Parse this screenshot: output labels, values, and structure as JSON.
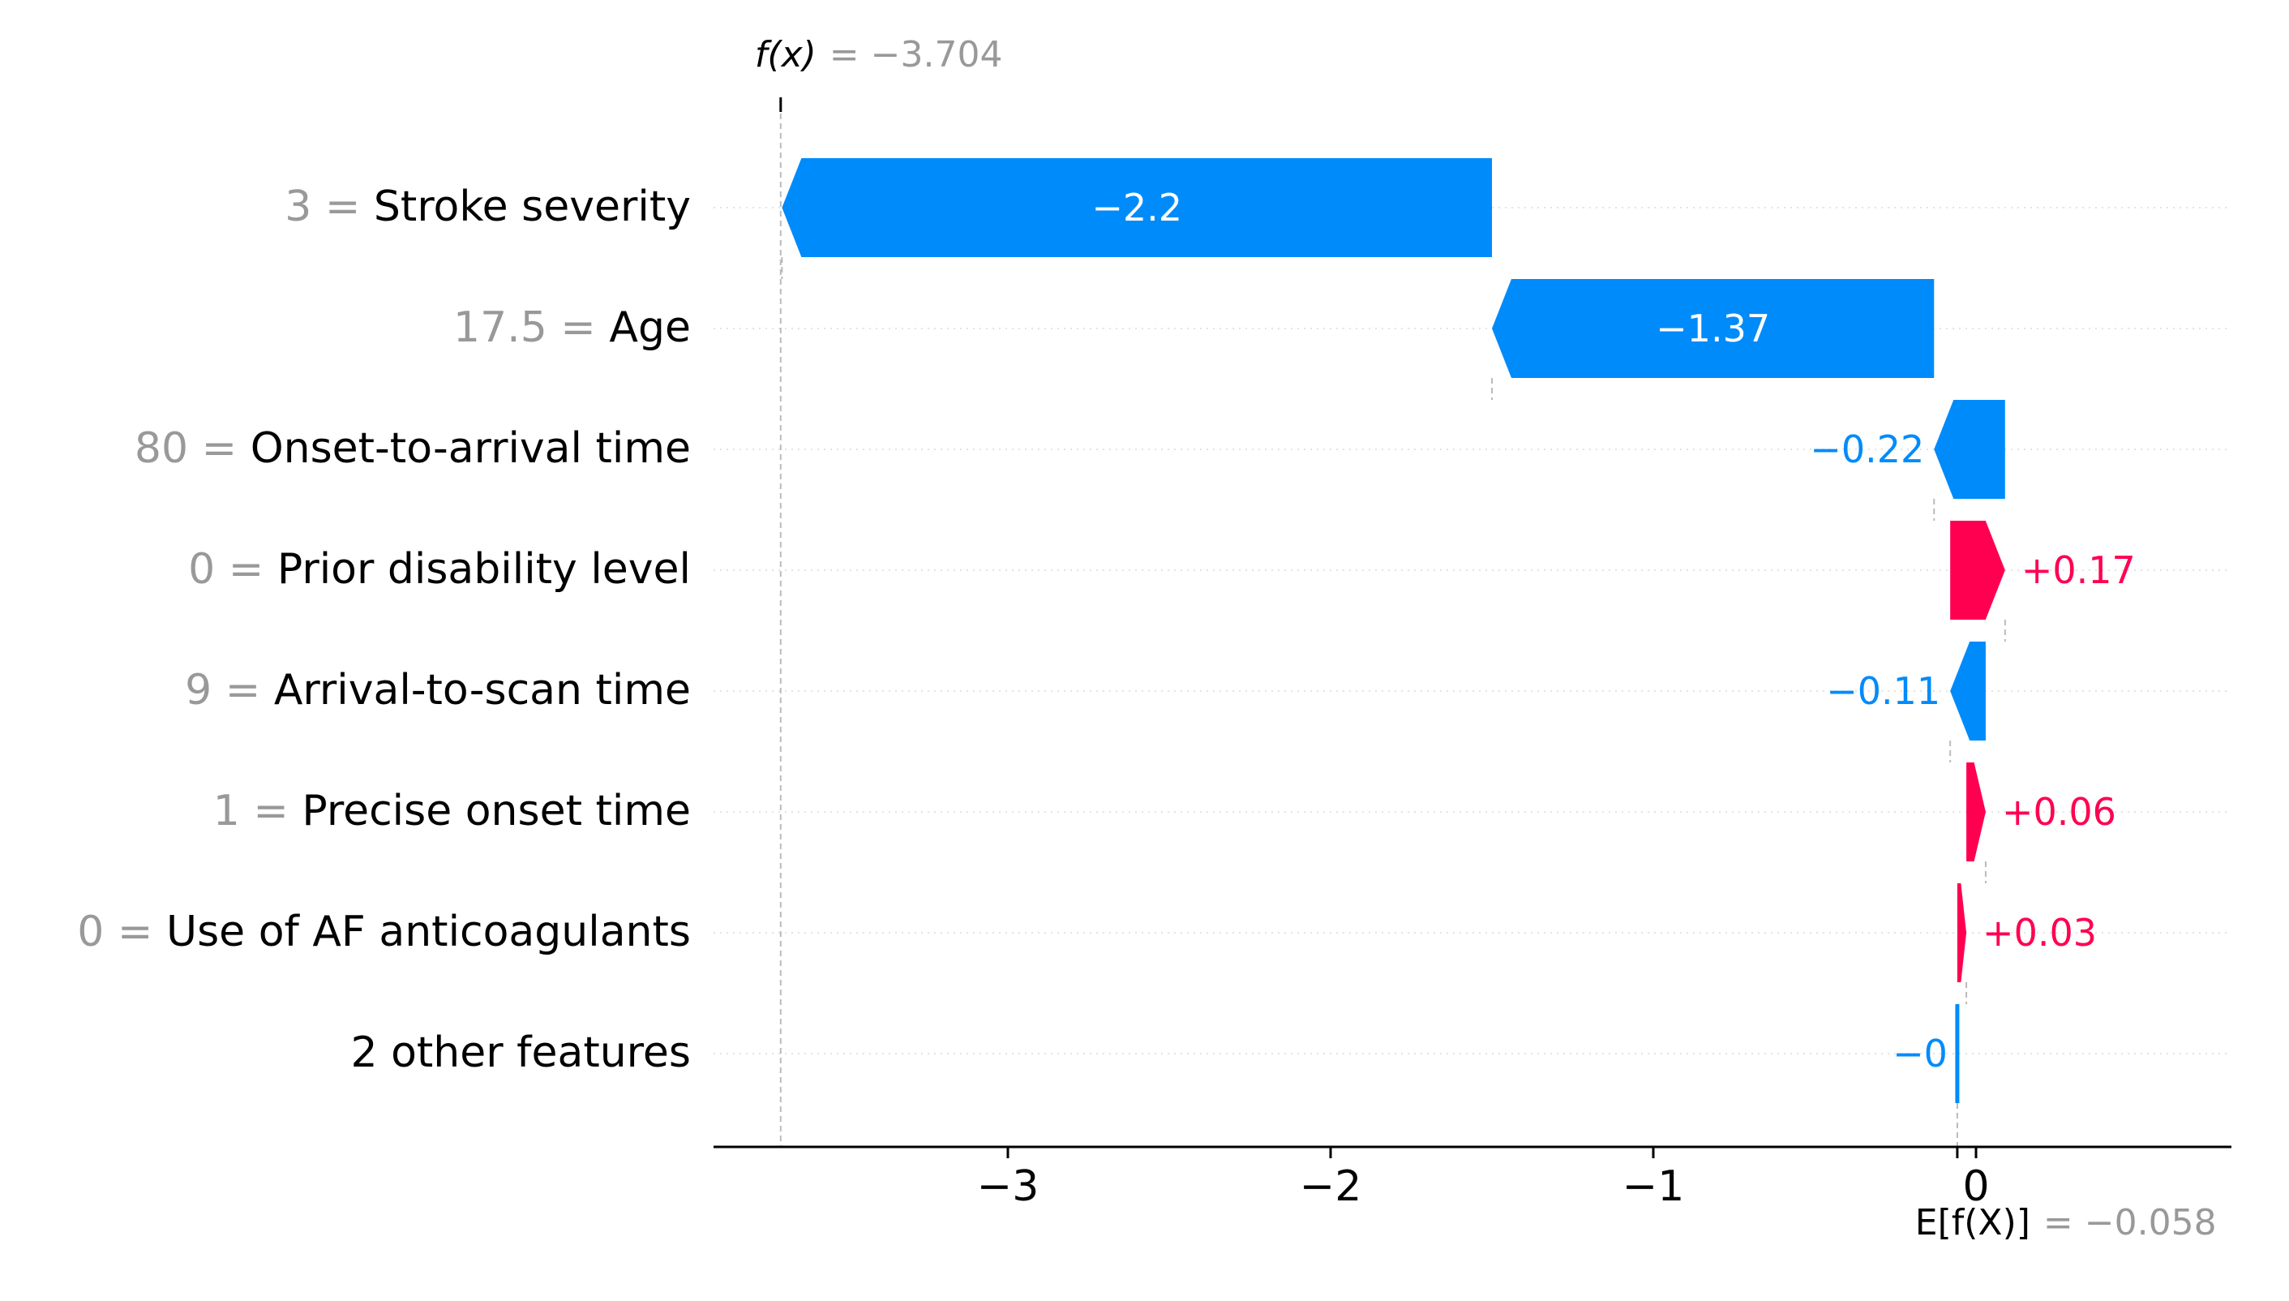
{
  "chart_data": {
    "type": "waterfall",
    "title": "",
    "xlabel": "",
    "ylabel": "",
    "xlim": [
      -3.93,
      0.72
    ],
    "xticks": [
      -3,
      -2,
      -1,
      0
    ],
    "xtick_labels": [
      "−3",
      "−2",
      "−1",
      "0"
    ],
    "grid": "horizontal dotted",
    "fx": {
      "label": "f(x)",
      "value_text": "= −3.704",
      "value": -3.704
    },
    "efx": {
      "label": "E[f(X)]",
      "value_text": "= −0.058",
      "value": -0.058
    },
    "colors": {
      "positive": "#ff0051",
      "negative": "#008bfb",
      "feature_value": "#999999",
      "feature_name": "#000000"
    },
    "features": [
      {
        "value_label": "3 =",
        "name": "Stroke severity",
        "shap": -2.2,
        "label": "−2.2",
        "start": -1.5,
        "end": -3.7
      },
      {
        "value_label": "17.5 =",
        "name": "Age",
        "shap": -1.37,
        "label": "−1.37",
        "start": -0.13,
        "end": -1.5
      },
      {
        "value_label": "80 =",
        "name": "Onset-to-arrival time",
        "shap": -0.22,
        "label": "−0.22",
        "start": 0.09,
        "end": -0.13
      },
      {
        "value_label": "0 =",
        "name": "Prior disability level",
        "shap": 0.17,
        "label": "+0.17",
        "start": -0.08,
        "end": 0.09
      },
      {
        "value_label": "9 =",
        "name": "Arrival-to-scan time",
        "shap": -0.11,
        "label": "−0.11",
        "start": 0.03,
        "end": -0.08
      },
      {
        "value_label": "1 =",
        "name": "Precise onset time",
        "shap": 0.06,
        "label": "+0.06",
        "start": -0.03,
        "end": 0.03
      },
      {
        "value_label": "0 =",
        "name": "Use of AF anticoagulants",
        "shap": 0.03,
        "label": "+0.03",
        "start": -0.058,
        "end": -0.03
      },
      {
        "value_label": "",
        "name": "2 other features",
        "shap": 0.0,
        "label": "−0",
        "start": -0.058,
        "end": -0.058
      }
    ]
  }
}
